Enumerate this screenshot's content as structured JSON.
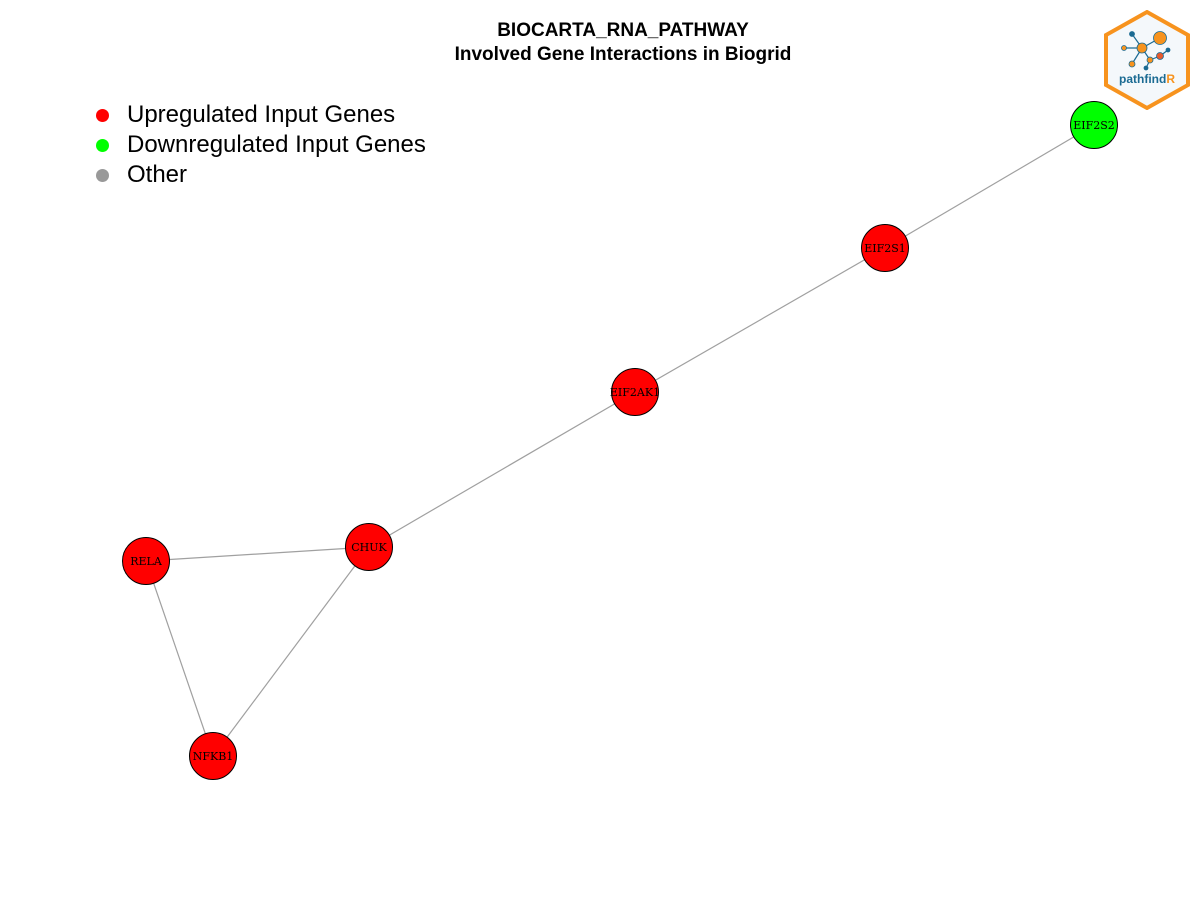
{
  "title": {
    "line1": "BIOCARTA_RNA_PATHWAY",
    "line2": "Involved Gene Interactions in Biogrid"
  },
  "legend": [
    {
      "label": "Upregulated Input Genes",
      "color": "#ff0000"
    },
    {
      "label": "Downregulated Input Genes",
      "color": "#00ff00"
    },
    {
      "label": "Other",
      "color": "#999999"
    }
  ],
  "colors": {
    "upregulated": "#ff0000",
    "downregulated": "#00ff00",
    "other": "#999999",
    "edge": "#a0a0a0",
    "node_border": "#000000"
  },
  "logo": {
    "name": "pathfindR",
    "text_main": "pathfind",
    "text_accent": "R",
    "border_color": "#f7931e",
    "text_color": "#1b6b93",
    "accent_color": "#f7931e",
    "icon": "network-hexagon-logo"
  },
  "network": {
    "nodes": [
      {
        "id": "EIF2S2",
        "label": "EIF2S2",
        "status": "downregulated"
      },
      {
        "id": "EIF2S1",
        "label": "EIF2S1",
        "status": "upregulated"
      },
      {
        "id": "EIF2AK1",
        "label": "EIF2AK1",
        "status": "upregulated"
      },
      {
        "id": "CHUK",
        "label": "CHUK",
        "status": "upregulated"
      },
      {
        "id": "RELA",
        "label": "RELA",
        "status": "upregulated"
      },
      {
        "id": "NFKB1",
        "label": "NFKB1",
        "status": "upregulated"
      }
    ],
    "edges": [
      {
        "source": "EIF2S2",
        "target": "EIF2S1"
      },
      {
        "source": "EIF2S1",
        "target": "EIF2AK1"
      },
      {
        "source": "EIF2AK1",
        "target": "CHUK"
      },
      {
        "source": "CHUK",
        "target": "RELA"
      },
      {
        "source": "CHUK",
        "target": "NFKB1"
      },
      {
        "source": "RELA",
        "target": "NFKB1"
      }
    ]
  }
}
